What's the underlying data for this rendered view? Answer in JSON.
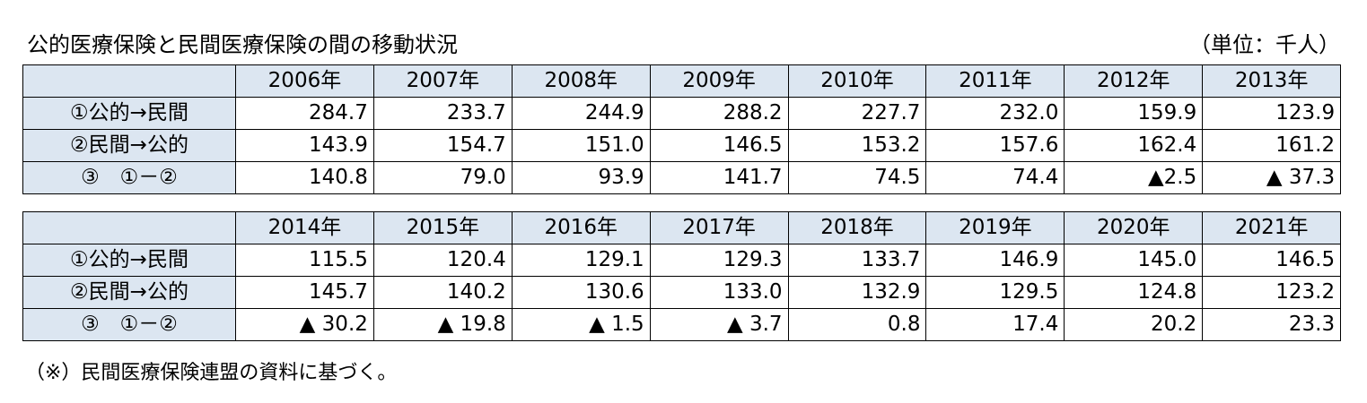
{
  "title": "公的医療保険と民間医療保険の間の移動状況",
  "unit": "（単位：千人）",
  "tables": [
    {
      "years": [
        "2006年",
        "2007年",
        "2008年",
        "2009年",
        "2010年",
        "2011年",
        "2012年",
        "2013年"
      ],
      "rows": [
        {
          "label": "①公的→民間",
          "values": [
            "284.7",
            "233.7",
            "244.9",
            "288.2",
            "227.7",
            "232.0",
            "159.9",
            "123.9"
          ]
        },
        {
          "label": "②民間→公的",
          "values": [
            "143.9",
            "154.7",
            "151.0",
            "146.5",
            "153.2",
            "157.6",
            "162.4",
            "161.2"
          ]
        },
        {
          "label": "③　①－②",
          "values": [
            "140.8",
            "79.0",
            "93.9",
            "141.7",
            "74.5",
            "74.4",
            "▲2.5",
            "▲ 37.3"
          ]
        }
      ]
    },
    {
      "years": [
        "2014年",
        "2015年",
        "2016年",
        "2017年",
        "2018年",
        "2019年",
        "2020年",
        "2021年"
      ],
      "rows": [
        {
          "label": "①公的→民間",
          "values": [
            "115.5",
            "120.4",
            "129.1",
            "129.3",
            "133.7",
            "146.9",
            "145.0",
            "146.5"
          ]
        },
        {
          "label": "②民間→公的",
          "values": [
            "145.7",
            "140.2",
            "130.6",
            "133.0",
            "132.9",
            "129.5",
            "124.8",
            "123.2"
          ]
        },
        {
          "label": "③　①－②",
          "values": [
            "▲ 30.2",
            "▲ 19.8",
            "▲ 1.5",
            "▲ 3.7",
            "0.8",
            "17.4",
            "20.2",
            "23.3"
          ]
        }
      ]
    }
  ],
  "note": "（※）民間医療保険連盟の資料に基づく。"
}
